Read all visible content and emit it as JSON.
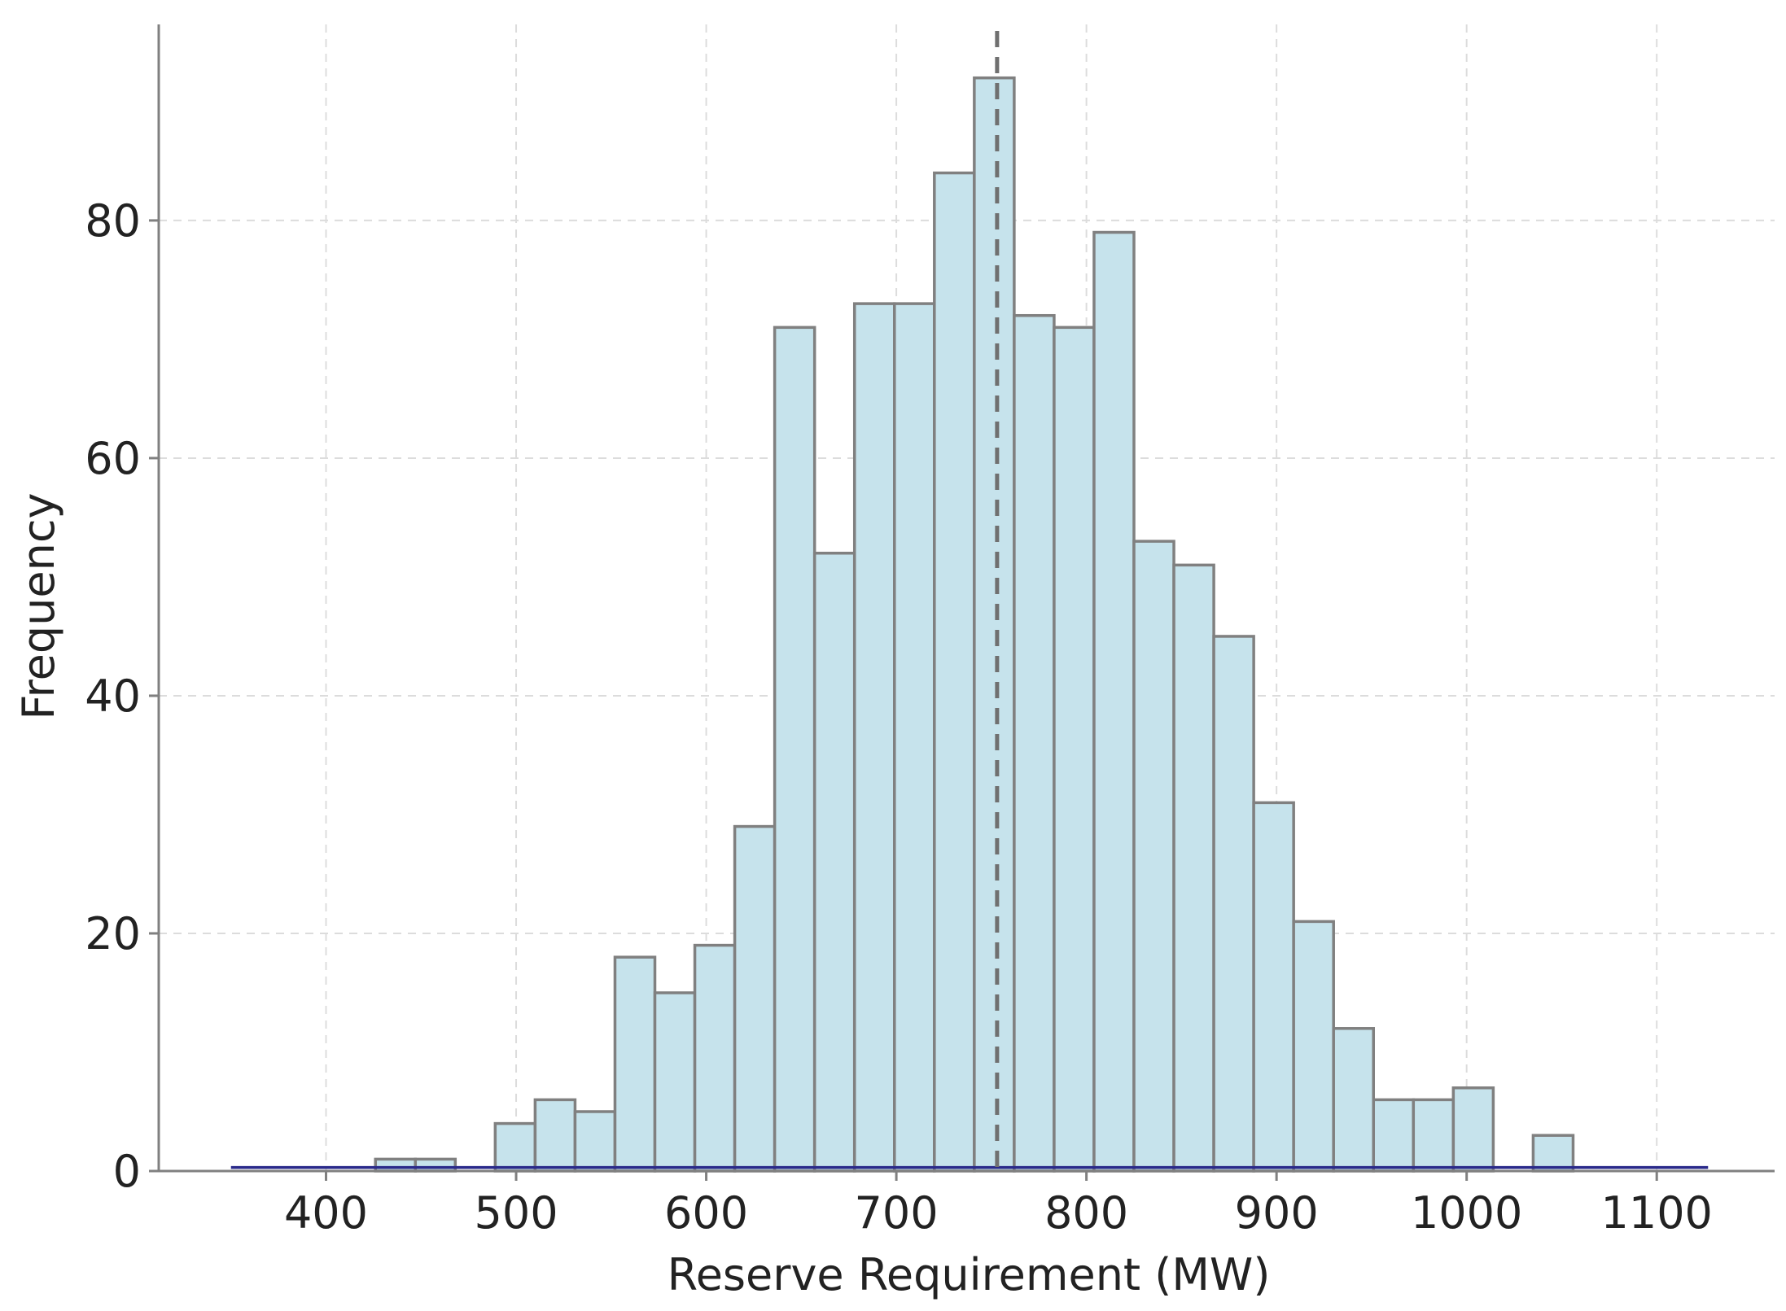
{
  "chart_data": {
    "type": "bar",
    "xlabel": "Reserve Requirement (MW)",
    "ylabel": "Frequency",
    "xlim": [
      312,
      1162
    ],
    "ylim": [
      0,
      96.5
    ],
    "x_ticks": [
      400,
      500,
      600,
      700,
      800,
      900,
      1000,
      1100
    ],
    "y_ticks": [
      0,
      20,
      40,
      60,
      80
    ],
    "grid": true,
    "bins": [
      {
        "x0": 426,
        "x1": 447,
        "count": 1
      },
      {
        "x0": 447,
        "x1": 468,
        "count": 1
      },
      {
        "x0": 489,
        "x1": 510,
        "count": 4
      },
      {
        "x0": 510,
        "x1": 531,
        "count": 6
      },
      {
        "x0": 531,
        "x1": 552,
        "count": 5
      },
      {
        "x0": 552,
        "x1": 573,
        "count": 18
      },
      {
        "x0": 573,
        "x1": 594,
        "count": 15
      },
      {
        "x0": 594,
        "x1": 615,
        "count": 19
      },
      {
        "x0": 615,
        "x1": 636,
        "count": 29
      },
      {
        "x0": 636,
        "x1": 657,
        "count": 71
      },
      {
        "x0": 657,
        "x1": 678,
        "count": 52
      },
      {
        "x0": 678,
        "x1": 699,
        "count": 73
      },
      {
        "x0": 699,
        "x1": 720,
        "count": 73
      },
      {
        "x0": 720,
        "x1": 741,
        "count": 84
      },
      {
        "x0": 741,
        "x1": 762,
        "count": 92
      },
      {
        "x0": 762,
        "x1": 783,
        "count": 72
      },
      {
        "x0": 783,
        "x1": 804,
        "count": 71
      },
      {
        "x0": 804,
        "x1": 825,
        "count": 79
      },
      {
        "x0": 825,
        "x1": 846,
        "count": 53
      },
      {
        "x0": 846,
        "x1": 867,
        "count": 51
      },
      {
        "x0": 867,
        "x1": 888,
        "count": 45
      },
      {
        "x0": 888,
        "x1": 909,
        "count": 31
      },
      {
        "x0": 909,
        "x1": 930,
        "count": 21
      },
      {
        "x0": 930,
        "x1": 951,
        "count": 12
      },
      {
        "x0": 951,
        "x1": 972,
        "count": 6
      },
      {
        "x0": 972,
        "x1": 993,
        "count": 6
      },
      {
        "x0": 993,
        "x1": 1014,
        "count": 7
      },
      {
        "x0": 1035,
        "x1": 1056,
        "count": 3
      }
    ],
    "mean_line": {
      "x": 753,
      "style": "dashed"
    },
    "density_line": {
      "x_start": 350,
      "x_end": 1127,
      "y": 0.3
    },
    "colors": {
      "bar_fill": "#c6e3ec",
      "bar_edge": "#808080",
      "mean_line": "#707070",
      "density_line": "#2a2a8a",
      "grid": "#dcdcdc",
      "axis": "#808080"
    }
  }
}
